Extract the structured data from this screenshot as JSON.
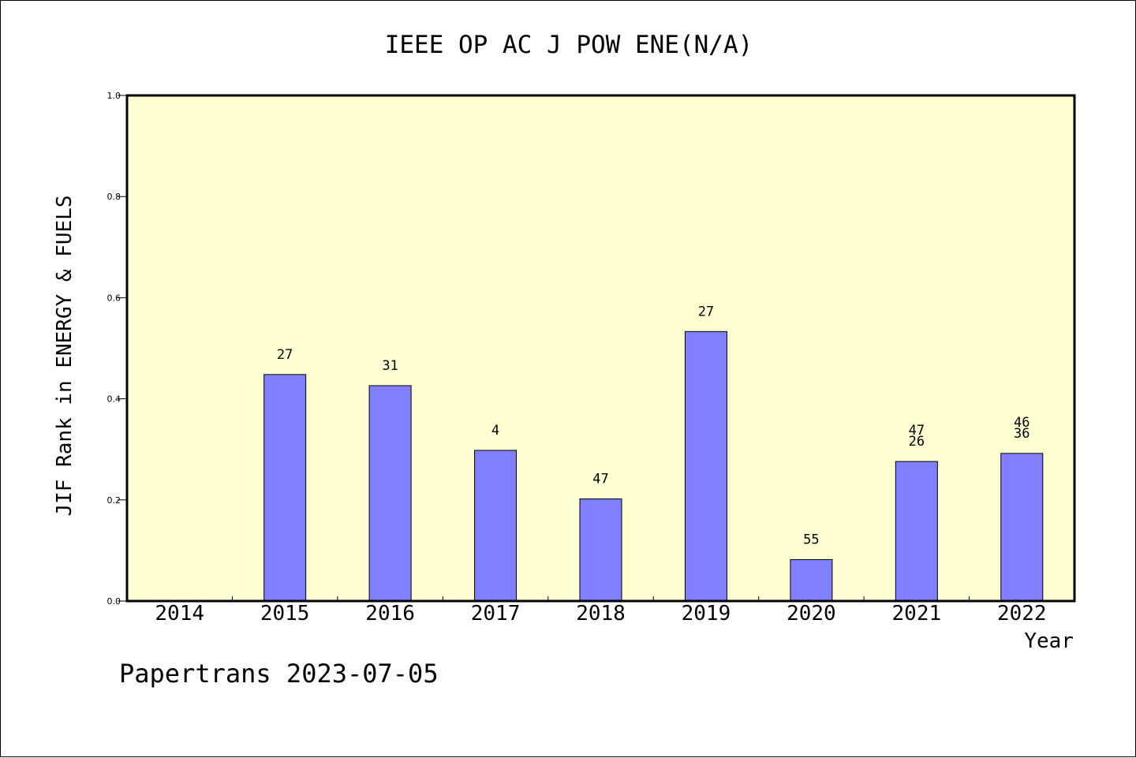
{
  "chart_data": {
    "type": "bar",
    "title": "IEEE OP AC J POW ENE(N/A)",
    "xlabel": "Year",
    "ylabel": "JIF Rank in ENERGY & FUELS",
    "categories": [
      "2014",
      "2015",
      "2016",
      "2017",
      "2018",
      "2019",
      "2020",
      "2021",
      "2022"
    ],
    "values": [
      null,
      0.448,
      0.426,
      0.298,
      0.202,
      0.533,
      0.082,
      0.276,
      0.292
    ],
    "bar_labels": [
      [],
      [
        "27"
      ],
      [
        "31"
      ],
      [
        "4"
      ],
      [
        "47"
      ],
      [
        "27"
      ],
      [
        "55"
      ],
      [
        "47",
        "26"
      ],
      [
        "46",
        "36"
      ]
    ],
    "ylim": [
      0,
      1.0
    ],
    "yticks": [
      "0.0",
      "0.2",
      "0.4",
      "0.6",
      "0.8",
      "1.0"
    ],
    "colors": {
      "plot_background": "#ffffd2",
      "bar_fill": "#8080ff",
      "bar_stroke": "#000000"
    }
  },
  "footer": "Papertrans 2023-07-05"
}
